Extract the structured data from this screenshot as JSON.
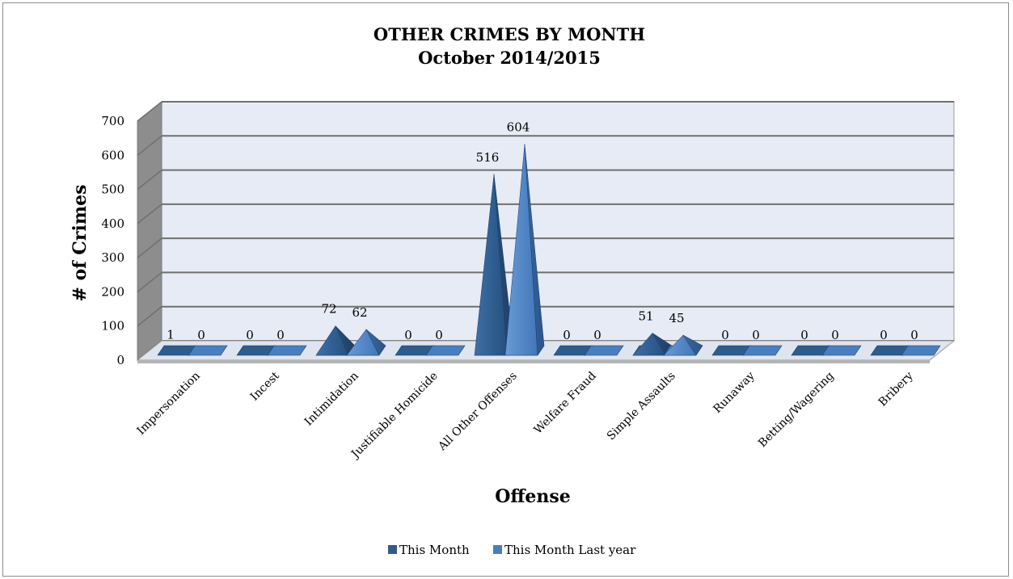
{
  "chart_data": {
    "type": "bar",
    "shape": "3d-pyramid",
    "title": "OTHER CRIMES BY MONTH",
    "subtitle": "October 2014/2015",
    "xlabel": "Offense",
    "ylabel": "# of Crimes",
    "ylim": [
      0,
      700
    ],
    "yticks": [
      0,
      100,
      200,
      300,
      400,
      500,
      600,
      700
    ],
    "grid": true,
    "legend_position": "bottom",
    "categories": [
      "Impersonation",
      "Incest",
      "Intimidation",
      "Justifiable Homicide",
      "All Other Offenses",
      "Welfare Fraud",
      "Simple Assaults",
      "Runaway",
      "Betting/Wagering",
      "Bribery"
    ],
    "series": [
      {
        "name": "This Month",
        "color": "#2f5c8f",
        "values": [
          1,
          0,
          72,
          0,
          516,
          0,
          51,
          0,
          0,
          0
        ]
      },
      {
        "name": "This Month Last year",
        "color": "#4a7ec0",
        "values": [
          0,
          0,
          62,
          0,
          604,
          0,
          45,
          0,
          0,
          0
        ]
      }
    ],
    "colors": {
      "plot_back": "#e6ebf5",
      "grid": "#6f6f6f",
      "floor": "#2f5c8f",
      "wall_side": "#8d8d8d"
    }
  }
}
